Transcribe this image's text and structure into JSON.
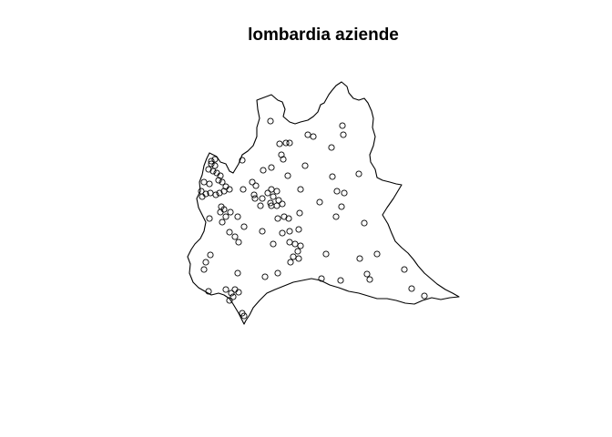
{
  "title": "lombardia aziende",
  "colors": {
    "background": "#ffffff",
    "outline": "#000000",
    "points": "#000000"
  },
  "map": {
    "region": "Lombardia",
    "point_marker": "open-circle",
    "point_count": 122
  }
}
